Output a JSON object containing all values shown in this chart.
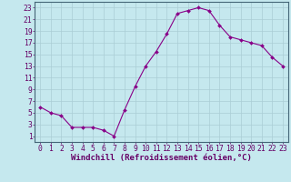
{
  "x": [
    0,
    1,
    2,
    3,
    4,
    5,
    6,
    7,
    8,
    9,
    10,
    11,
    12,
    13,
    14,
    15,
    16,
    17,
    18,
    19,
    20,
    21,
    22,
    23
  ],
  "y": [
    6,
    5,
    4.5,
    2.5,
    2.5,
    2.5,
    2,
    1,
    5.5,
    9.5,
    13,
    15.5,
    18.5,
    22,
    22.5,
    23,
    22.5,
    20,
    18,
    17.5,
    17,
    16.5,
    14.5,
    13
  ],
  "line_color": "#880088",
  "marker_color": "#880088",
  "bg_color": "#C5E8EE",
  "grid_color": "#AACDD5",
  "xlabel": "Windchill (Refroidissement éolien,°C)",
  "ylabel_ticks": [
    1,
    3,
    5,
    7,
    9,
    11,
    13,
    15,
    17,
    19,
    21,
    23
  ],
  "xticks": [
    0,
    1,
    2,
    3,
    4,
    5,
    6,
    7,
    8,
    9,
    10,
    11,
    12,
    13,
    14,
    15,
    16,
    17,
    18,
    19,
    20,
    21,
    22,
    23
  ],
  "ylim": [
    0,
    24
  ],
  "xlim": [
    -0.5,
    23.5
  ],
  "label_color": "#660066",
  "tick_color": "#660066",
  "spine_color": "#446677",
  "font_size_label": 6.5,
  "font_size_tick": 5.8
}
